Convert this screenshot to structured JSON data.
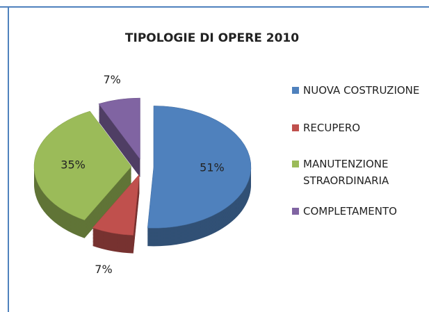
{
  "chart_data": {
    "type": "pie",
    "title": "TIPOLOGIE DI OPERE 2010",
    "categories": [
      "NUOVA COSTRUZIONE",
      "RECUPERO",
      "MANUTENZIONE STRAORDINARIA",
      "COMPLETAMENTO"
    ],
    "values": [
      51,
      7,
      35,
      7
    ],
    "value_labels": [
      "51%",
      "7%",
      "35%",
      "7%"
    ],
    "colors": [
      "#4f81bd",
      "#c0504d",
      "#9bbb59",
      "#8064a2"
    ],
    "legend": "right"
  }
}
